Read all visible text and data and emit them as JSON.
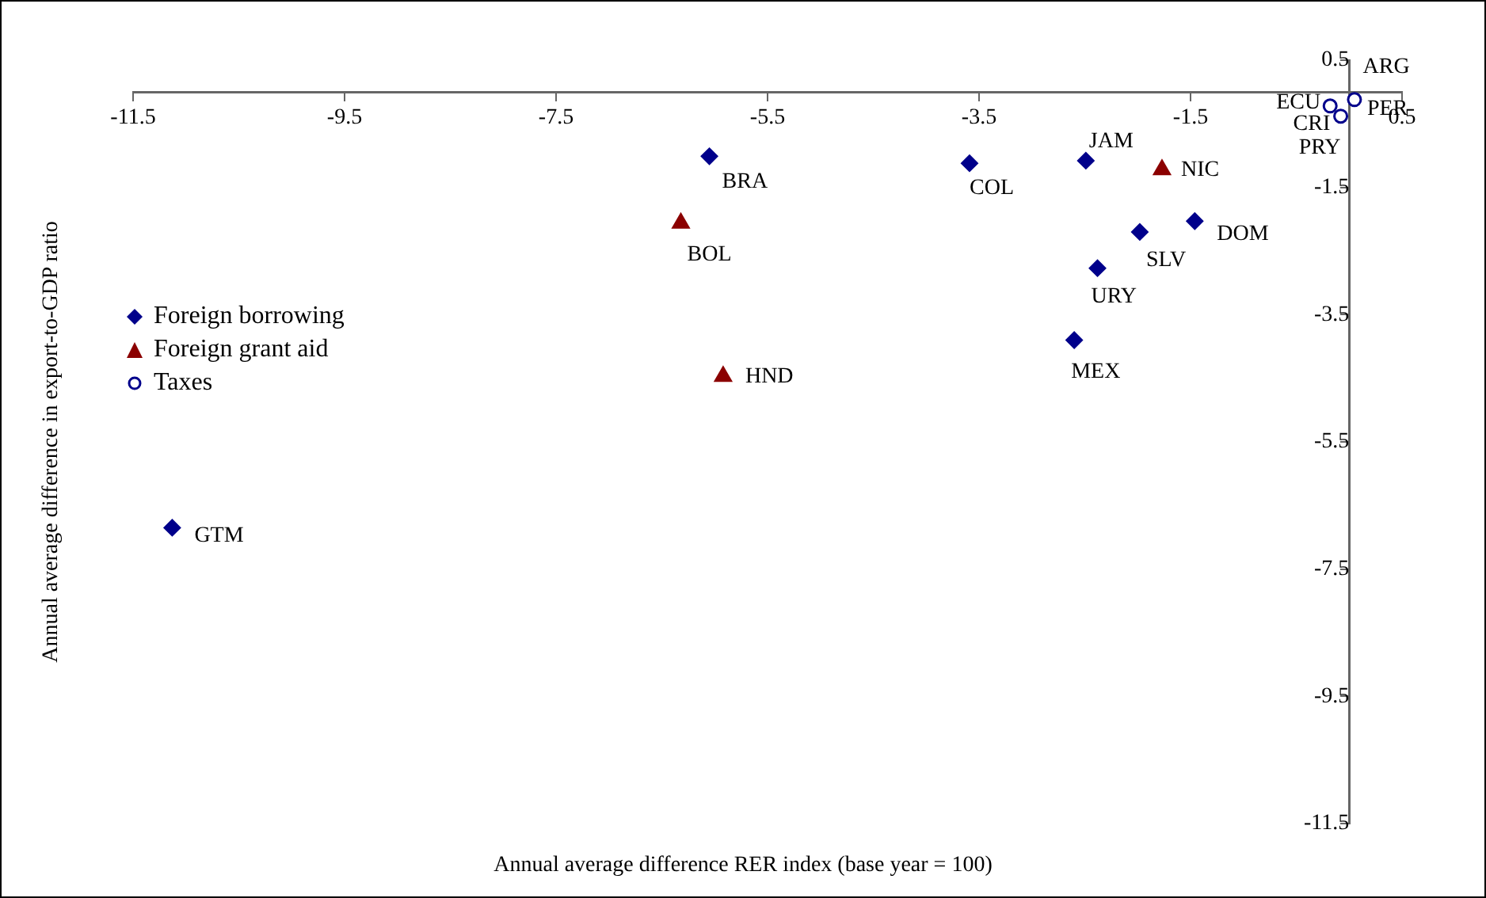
{
  "chart_data": {
    "type": "scatter",
    "xlabel": "Annual average difference RER index (base year = 100)",
    "ylabel": "Annual average difference in export-to-GDP ratio",
    "series": [
      {
        "name": "Foreign borrowing",
        "color": "#00008b",
        "marker": "diamond",
        "x": [
          -6.05,
          -3.59,
          -2.49,
          -1.46,
          -1.98,
          -2.38,
          -2.6,
          -11.13
        ],
        "values": [
          -1.01,
          -1.12,
          -1.08,
          -2.03,
          -2.2,
          -2.77,
          -3.9,
          -6.85
        ]
      },
      {
        "name": "Foreign grant aid",
        "color": "#8b0000",
        "marker": "triangle",
        "x": [
          -6.32,
          -1.77,
          -5.92
        ],
        "values": [
          -2.06,
          -1.22,
          -4.47
        ]
      },
      {
        "name": "Taxes",
        "color": "#00008b",
        "marker": "circle",
        "x": [
          null,
          0.05,
          -0.18,
          null,
          -0.08
        ],
        "values": [
          null,
          -0.12,
          -0.22,
          null,
          -0.38
        ]
      }
    ],
    "annotations": [
      {
        "text": "BRA",
        "x": -6.05,
        "y": -1.01
      },
      {
        "text": "COL",
        "x": -3.59,
        "y": -1.12
      },
      {
        "text": "JAM",
        "x": -2.49,
        "y": -1.08
      },
      {
        "text": "DOM",
        "x": -1.46,
        "y": -2.03
      },
      {
        "text": "SLV",
        "x": -1.98,
        "y": -2.2
      },
      {
        "text": "URY",
        "x": -2.38,
        "y": -2.77
      },
      {
        "text": "MEX",
        "x": -2.6,
        "y": -3.9
      },
      {
        "text": "GTM",
        "x": -11.13,
        "y": -6.85
      },
      {
        "text": "BOL",
        "x": -6.32,
        "y": -2.06
      },
      {
        "text": "NIC",
        "x": -1.77,
        "y": -1.22
      },
      {
        "text": "HND",
        "x": -5.92,
        "y": -4.47
      },
      {
        "text": "ARG",
        "x": 0.04,
        "y": -0.1
      },
      {
        "text": "PER",
        "x": 0.05,
        "y": -0.12
      },
      {
        "text": "ECU",
        "x": -0.18,
        "y": -0.22
      },
      {
        "text": "CRI",
        "x": -0.09,
        "y": -0.36
      },
      {
        "text": "PRY",
        "x": -0.08,
        "y": -0.38
      }
    ],
    "xlim": [
      -11.5,
      0.5
    ],
    "xticks": [
      -11.5,
      -9.5,
      -7.5,
      -5.5,
      -3.5,
      -1.5,
      0.5
    ],
    "ylim": [
      -11.5,
      0.5
    ],
    "yticks": [
      0.5,
      -1.5,
      -3.5,
      -5.5,
      -7.5,
      -9.5,
      -11.5
    ],
    "grid": false,
    "legend": "left"
  }
}
